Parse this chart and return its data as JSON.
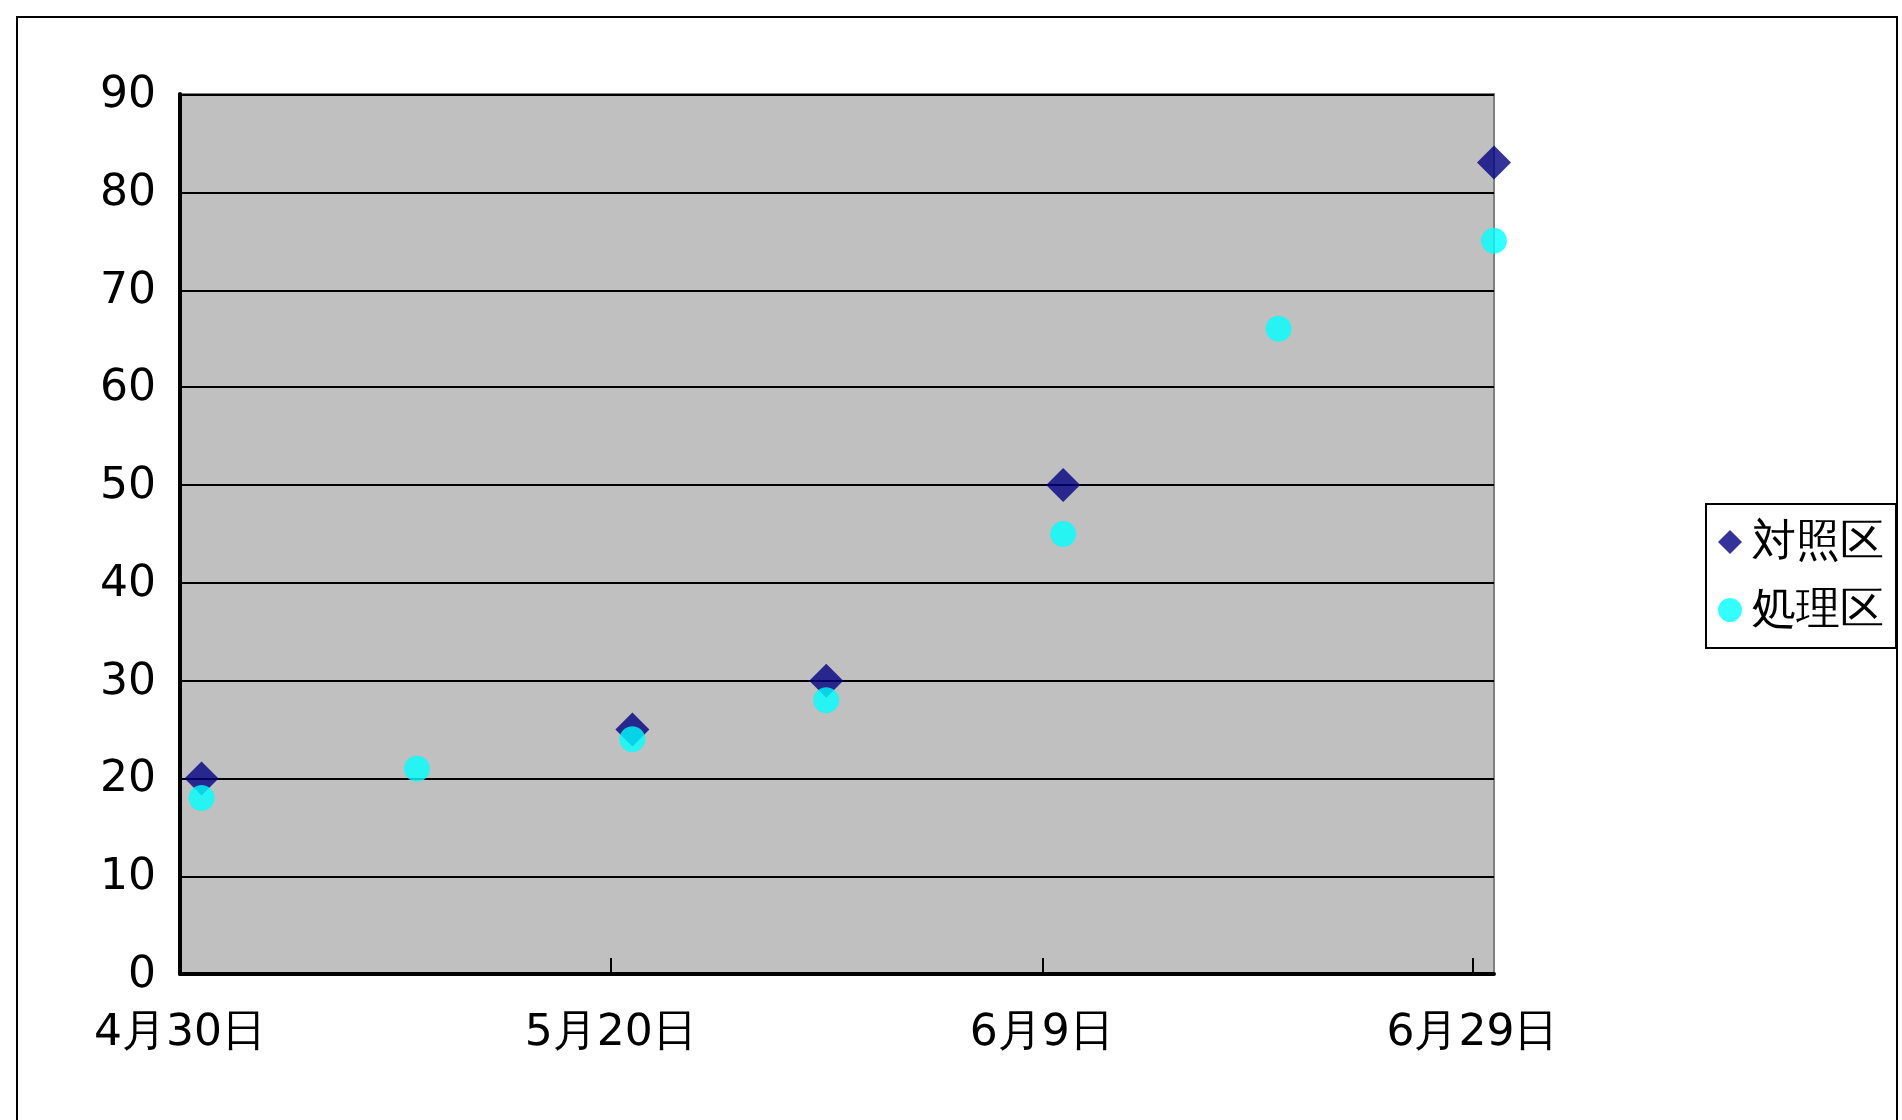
{
  "chart_data": {
    "type": "scatter",
    "x": [
      "--05-01",
      "--05-11",
      "--05-21",
      "--05-30",
      "--06-10",
      "--06-20",
      "--06-30"
    ],
    "series": [
      {
        "name": "対照区",
        "color": "#000080",
        "marker": "diamond",
        "values": [
          20,
          null,
          25,
          30,
          50,
          null,
          83
        ]
      },
      {
        "name": "処理区",
        "color": "#00ffff",
        "marker": "circle",
        "values": [
          18,
          21,
          24,
          28,
          45,
          66,
          75
        ]
      }
    ],
    "xlim": [
      "--04-30",
      "--06-30"
    ],
    "xticks": [
      {
        "value": "--04-30",
        "label": "4月30日"
      },
      {
        "value": "--05-20",
        "label": "5月20日"
      },
      {
        "value": "--06-09",
        "label": "6月9日"
      },
      {
        "value": "--06-29",
        "label": "6月29日"
      }
    ],
    "ylim": [
      0,
      90
    ],
    "yticks": [
      0,
      10,
      20,
      30,
      40,
      50,
      60,
      70,
      80,
      90
    ],
    "grid": "y",
    "legend": "right"
  }
}
